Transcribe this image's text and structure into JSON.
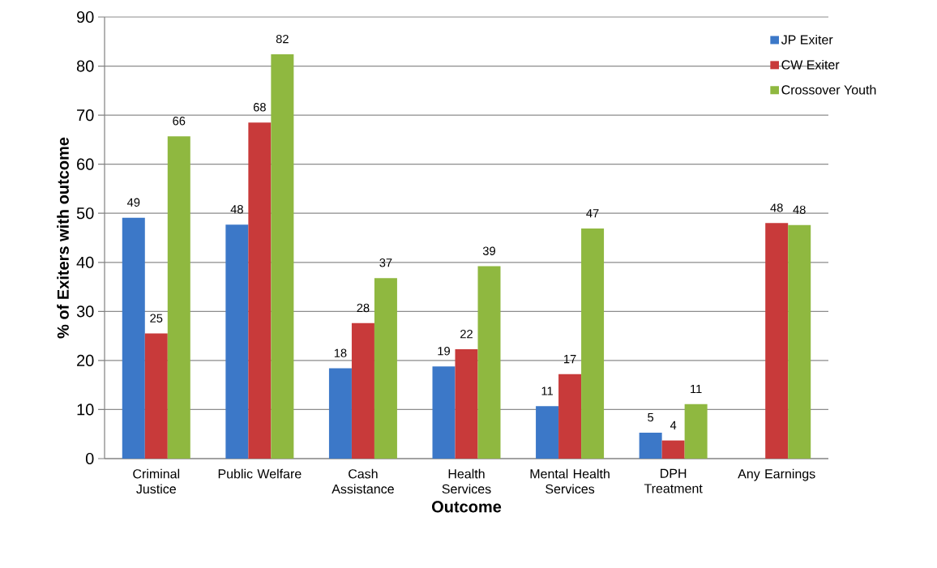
{
  "chart_data": {
    "type": "bar",
    "xlabel": "Outcome",
    "ylabel": "% of Exiters with outcome",
    "categories": [
      "Criminal Justice",
      "Public Welfare",
      "Cash Assistance",
      "Health Services",
      "Mental Health Services",
      "DPH Treatment",
      "Any Earnings"
    ],
    "series": [
      {
        "name": "JP Exiter",
        "color": "#3c78c8",
        "values": [
          49.1,
          47.7,
          18.4,
          18.8,
          10.7,
          5.3,
          null
        ],
        "value_labels": [
          "49",
          "48",
          "18",
          "19",
          "11",
          "5",
          null
        ]
      },
      {
        "name": "CW Exiter",
        "color": "#c83a3a",
        "values": [
          25.5,
          68.5,
          27.6,
          22.3,
          17.2,
          3.7,
          48.0
        ],
        "value_labels": [
          "25",
          "68",
          "28",
          "22",
          "17",
          "4",
          "48"
        ]
      },
      {
        "name": "Crossover Youth",
        "color": "#8fb840",
        "values": [
          65.7,
          82.4,
          36.8,
          39.2,
          46.9,
          11.1,
          47.6
        ],
        "value_labels": [
          "66",
          "82",
          "37",
          "39",
          "47",
          "11",
          "48"
        ]
      }
    ],
    "ylim": [
      0,
      90
    ],
    "yticks": [
      0,
      10,
      20,
      30,
      40,
      50,
      60,
      70,
      80,
      90
    ],
    "grid": "y",
    "legend": "top right"
  }
}
